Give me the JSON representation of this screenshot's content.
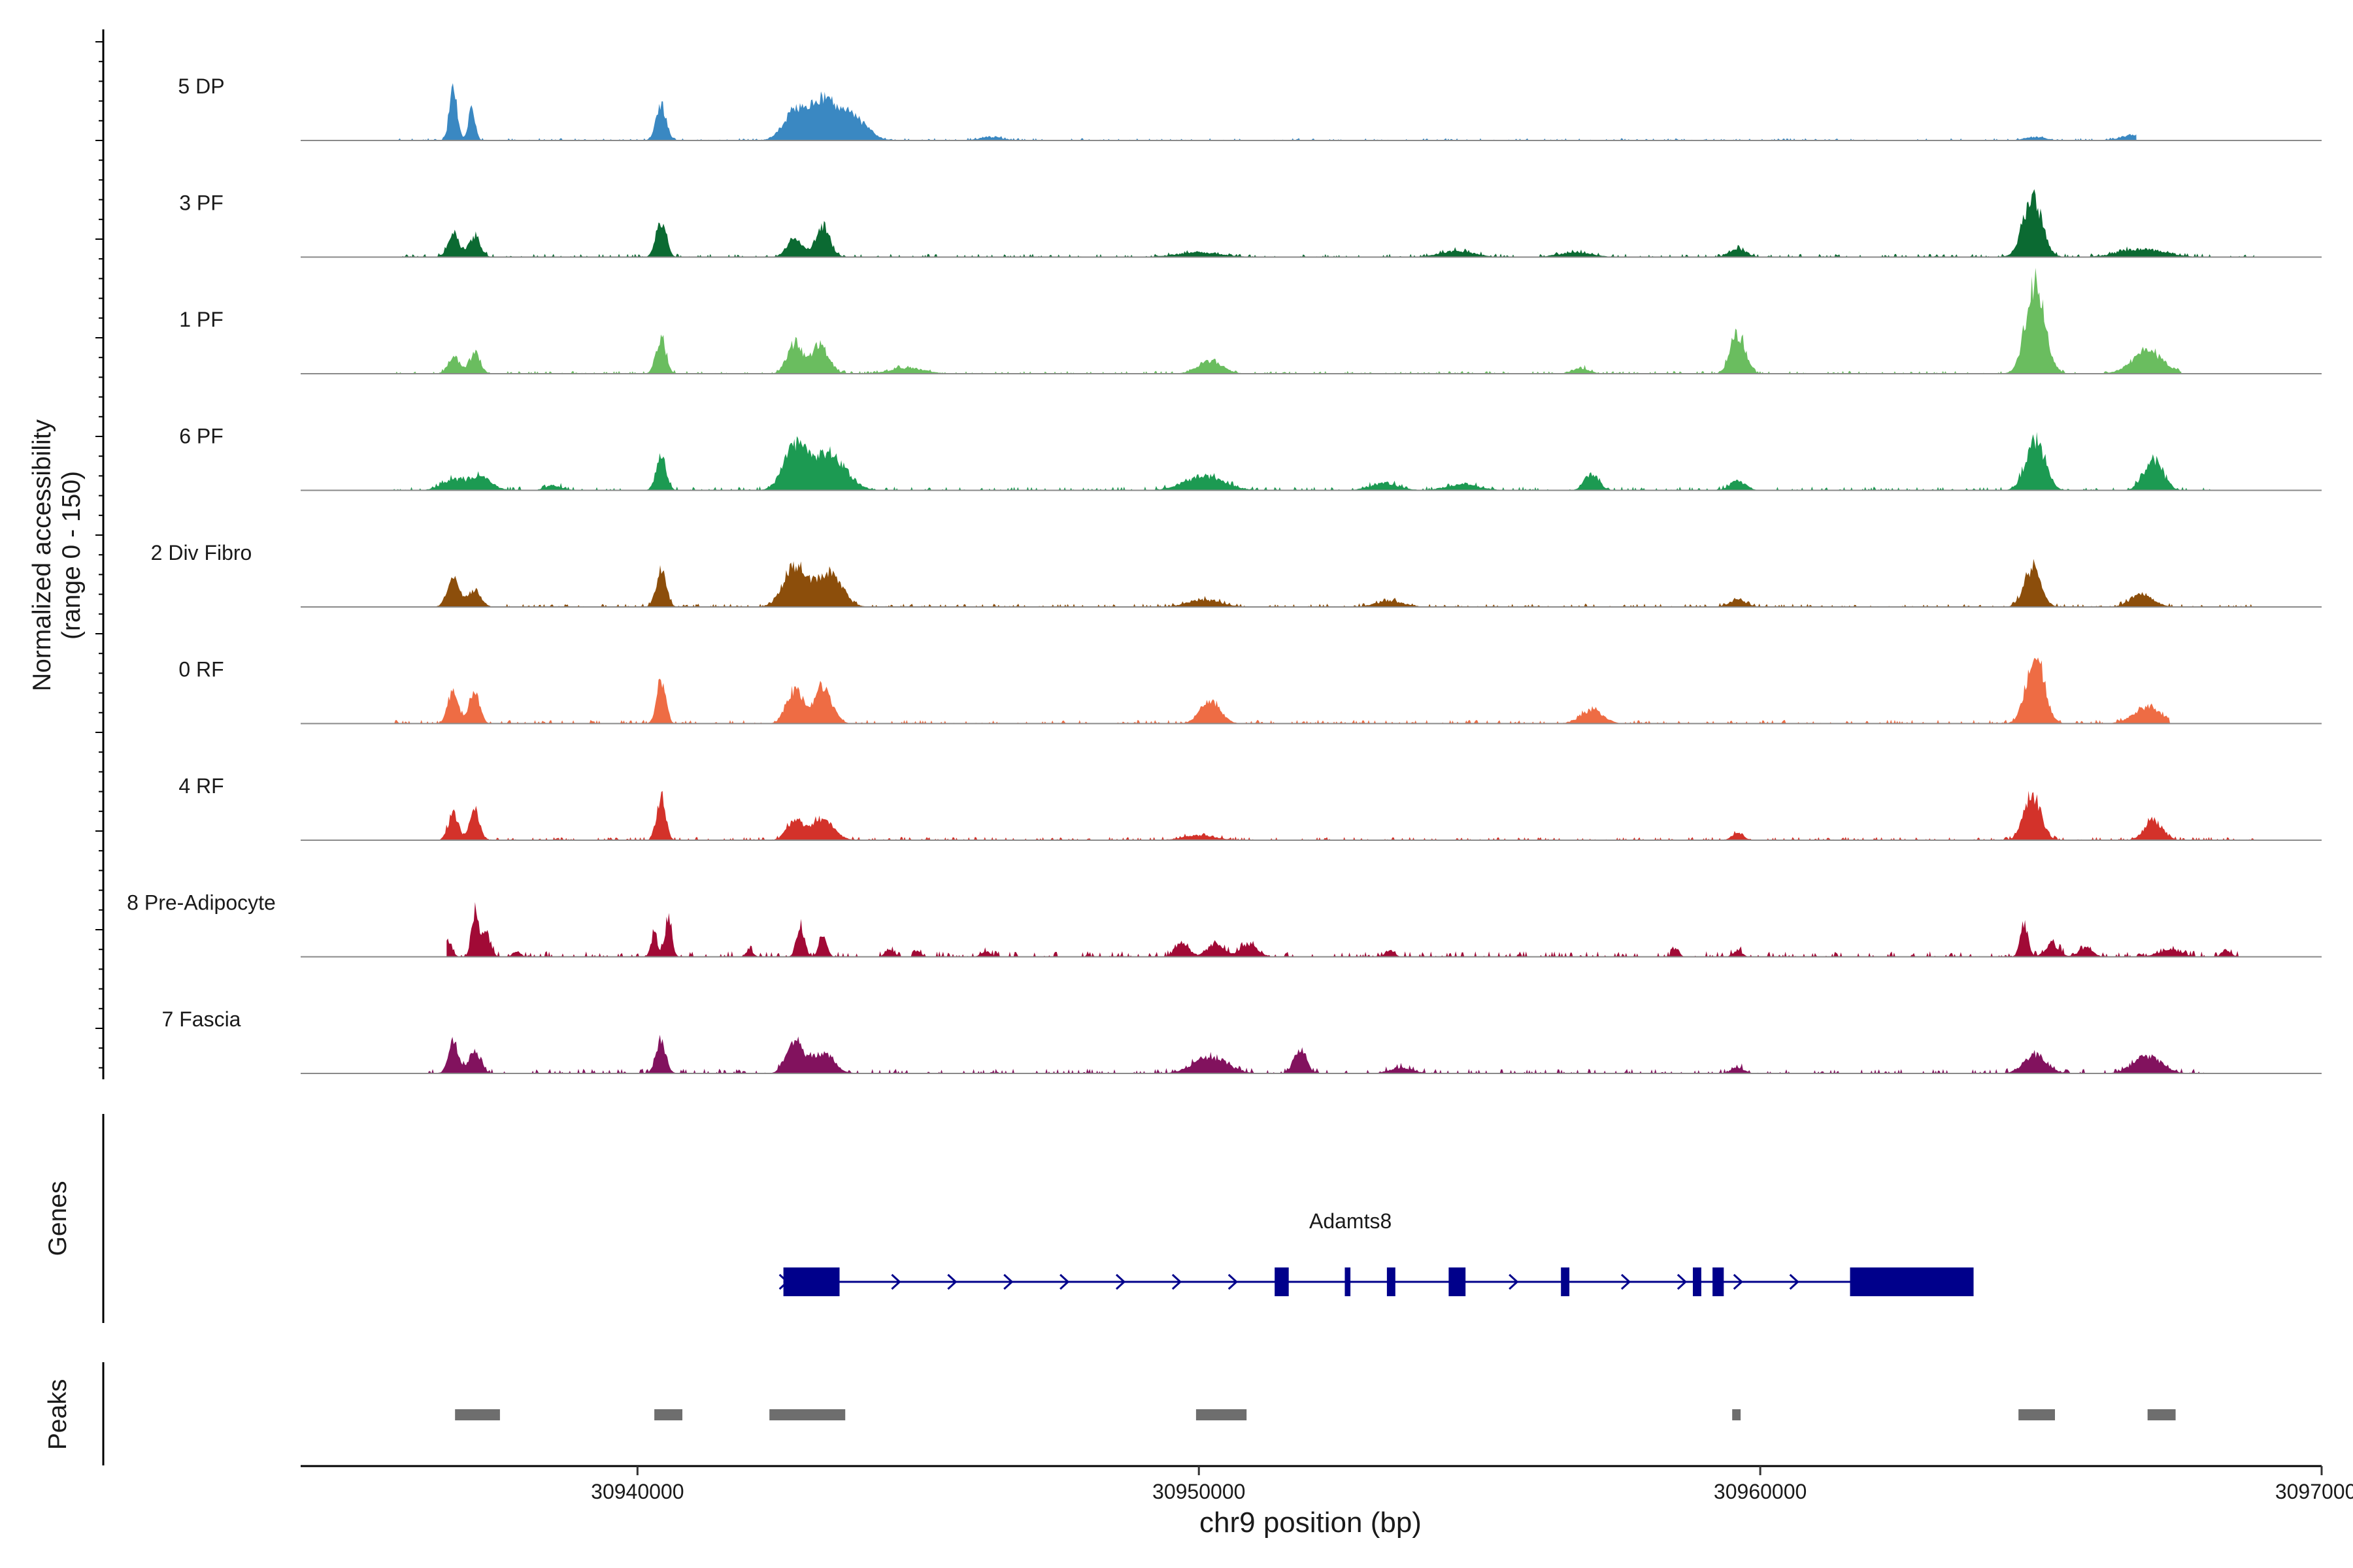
{
  "chart_data": {
    "type": "area",
    "title": "",
    "xlabel": "chr9 position (bp)",
    "ylabel": "Normalized accessibility\n(range 0 - 150)",
    "xlim": [
      30934000,
      30970000
    ],
    "ylim": [
      0,
      150
    ],
    "x_ticks": [
      30940000,
      30950000,
      30960000,
      30970000
    ],
    "x_tick_labels": [
      "30940000",
      "30950000",
      "30960000",
      "30970000"
    ],
    "tracks": [
      {
        "name": "5 DP",
        "color": "#3a88c2",
        "start": 30935700,
        "end": 30966700,
        "noise": 0.025,
        "peaks": [
          [
            30936720,
            0.86,
            70
          ],
          [
            30937050,
            0.55,
            60
          ],
          [
            30940420,
            0.62,
            90
          ],
          [
            30942800,
            0.48,
            200
          ],
          [
            30943300,
            0.64,
            220
          ],
          [
            30943800,
            0.42,
            260
          ],
          [
            30946300,
            0.06,
            200
          ],
          [
            30964900,
            0.06,
            180
          ],
          [
            30966700,
            0.1,
            250
          ]
        ]
      },
      {
        "name": "3 PF",
        "color": "#0b6a32",
        "start": 30935600,
        "end": 30968800,
        "noise": 0.035,
        "peaks": [
          [
            30936720,
            0.4,
            100
          ],
          [
            30937100,
            0.36,
            100
          ],
          [
            30940420,
            0.62,
            90
          ],
          [
            30942800,
            0.34,
            130
          ],
          [
            30943300,
            0.52,
            130
          ],
          [
            30950000,
            0.08,
            400
          ],
          [
            30954600,
            0.1,
            300
          ],
          [
            30956700,
            0.08,
            300
          ],
          [
            30959600,
            0.14,
            150
          ],
          [
            30964850,
            1.0,
            170
          ],
          [
            30966800,
            0.14,
            400
          ]
        ]
      },
      {
        "name": "1 PF",
        "color": "#6abd5f",
        "start": 30935600,
        "end": 30967500,
        "noise": 0.03,
        "peaks": [
          [
            30936720,
            0.28,
            100
          ],
          [
            30937100,
            0.34,
            100
          ],
          [
            30940420,
            0.58,
            90
          ],
          [
            30942800,
            0.52,
            130
          ],
          [
            30943250,
            0.48,
            160
          ],
          [
            30944800,
            0.1,
            300
          ],
          [
            30950200,
            0.22,
            220
          ],
          [
            30956800,
            0.1,
            150
          ],
          [
            30959600,
            0.68,
            130
          ],
          [
            30964900,
            1.53,
            170
          ],
          [
            30966900,
            0.38,
            280
          ]
        ]
      },
      {
        "name": "6 PF",
        "color": "#1c9a52",
        "start": 30935600,
        "end": 30968100,
        "noise": 0.04,
        "peaks": [
          [
            30936700,
            0.18,
            200
          ],
          [
            30937200,
            0.22,
            200
          ],
          [
            30938500,
            0.08,
            150
          ],
          [
            30940420,
            0.55,
            90
          ],
          [
            30942800,
            0.72,
            200
          ],
          [
            30943400,
            0.62,
            300
          ],
          [
            30950100,
            0.24,
            350
          ],
          [
            30953300,
            0.12,
            250
          ],
          [
            30954700,
            0.1,
            300
          ],
          [
            30957000,
            0.28,
            130
          ],
          [
            30959600,
            0.16,
            140
          ],
          [
            30964900,
            0.84,
            170
          ],
          [
            30967000,
            0.52,
            170
          ]
        ]
      },
      {
        "name": "2 Div Fibro",
        "color": "#8c4e0b",
        "start": 30936400,
        "end": 30968800,
        "noise": 0.035,
        "peaks": [
          [
            30936720,
            0.46,
            110
          ],
          [
            30937100,
            0.3,
            110
          ],
          [
            30940420,
            0.62,
            90
          ],
          [
            30942800,
            0.68,
            200
          ],
          [
            30943400,
            0.58,
            230
          ],
          [
            30950100,
            0.12,
            300
          ],
          [
            30953400,
            0.1,
            250
          ],
          [
            30959600,
            0.12,
            150
          ],
          [
            30964850,
            0.66,
            150
          ],
          [
            30966800,
            0.22,
            200
          ]
        ]
      },
      {
        "name": "0 RF",
        "color": "#ee6c44",
        "start": 30935600,
        "end": 30967300,
        "noise": 0.04,
        "peaks": [
          [
            30936720,
            0.62,
            90
          ],
          [
            30937100,
            0.56,
            90
          ],
          [
            30940420,
            0.74,
            80
          ],
          [
            30942800,
            0.58,
            140
          ],
          [
            30943300,
            0.62,
            160
          ],
          [
            30950200,
            0.38,
            180
          ],
          [
            30957000,
            0.22,
            200
          ],
          [
            30964900,
            1.16,
            160
          ],
          [
            30966900,
            0.28,
            250
          ]
        ]
      },
      {
        "name": "4 RF",
        "color": "#d3322a",
        "start": 30936200,
        "end": 30968800,
        "noise": 0.035,
        "peaks": [
          [
            30936720,
            0.46,
            90
          ],
          [
            30937100,
            0.52,
            90
          ],
          [
            30940420,
            0.72,
            80
          ],
          [
            30942800,
            0.34,
            140
          ],
          [
            30943300,
            0.36,
            200
          ],
          [
            30950000,
            0.08,
            300
          ],
          [
            30959600,
            0.14,
            100
          ],
          [
            30964850,
            0.78,
            150
          ],
          [
            30967000,
            0.34,
            160
          ]
        ]
      },
      {
        "name": "8 Pre-Adipocyte",
        "color": "#a10a36",
        "start": 30936600,
        "end": 30968800,
        "noise": 0.06,
        "peaks": [
          [
            30936600,
            0.3,
            80
          ],
          [
            30937100,
            0.76,
            60
          ],
          [
            30937300,
            0.4,
            80
          ],
          [
            30937850,
            0.1,
            70
          ],
          [
            30940300,
            0.4,
            60
          ],
          [
            30940550,
            0.7,
            60
          ],
          [
            30942000,
            0.12,
            60
          ],
          [
            30942900,
            0.52,
            70
          ],
          [
            30943300,
            0.34,
            70
          ],
          [
            30944500,
            0.12,
            80
          ],
          [
            30945000,
            0.1,
            60
          ],
          [
            30946200,
            0.1,
            80
          ],
          [
            30949700,
            0.24,
            120
          ],
          [
            30950300,
            0.22,
            150
          ],
          [
            30950900,
            0.22,
            150
          ],
          [
            30953400,
            0.12,
            80
          ],
          [
            30958500,
            0.14,
            60
          ],
          [
            30959600,
            0.1,
            80
          ],
          [
            30964700,
            0.56,
            70
          ],
          [
            30965200,
            0.22,
            120
          ],
          [
            30965800,
            0.16,
            120
          ],
          [
            30967300,
            0.12,
            200
          ],
          [
            30968300,
            0.12,
            80
          ]
        ]
      },
      {
        "name": "7 Fascia",
        "color": "#82125e",
        "start": 30936000,
        "end": 30967900,
        "noise": 0.05,
        "peaks": [
          [
            30936720,
            0.54,
            90
          ],
          [
            30937100,
            0.36,
            110
          ],
          [
            30940420,
            0.52,
            90
          ],
          [
            30942800,
            0.52,
            150
          ],
          [
            30943300,
            0.34,
            200
          ],
          [
            30950200,
            0.28,
            300
          ],
          [
            30951800,
            0.42,
            110
          ],
          [
            30953600,
            0.1,
            200
          ],
          [
            30959600,
            0.1,
            120
          ],
          [
            30964900,
            0.32,
            200
          ],
          [
            30966900,
            0.3,
            250
          ]
        ]
      }
    ],
    "gene": {
      "name": "Adamts8",
      "strand": "+",
      "start": 30942600,
      "end": 30963800,
      "exons": [
        [
          30942600,
          30943600
        ],
        [
          30951350,
          30951600
        ],
        [
          30952600,
          30952700
        ],
        [
          30953350,
          30953500
        ],
        [
          30954450,
          30954750
        ],
        [
          30956450,
          30956600
        ],
        [
          30958800,
          30958950
        ],
        [
          30959150,
          30959350
        ],
        [
          30961600,
          30963800
        ]
      ]
    },
    "peaks_track": [
      [
        30936750,
        30937550
      ],
      [
        30940300,
        30940800
      ],
      [
        30942350,
        30943700
      ],
      [
        30949950,
        30950850
      ],
      [
        30959500,
        30959650
      ],
      [
        30964600,
        30965250
      ],
      [
        30966900,
        30967400
      ]
    ],
    "panel_labels": {
      "genes": "Genes",
      "peaks": "Peaks"
    }
  }
}
